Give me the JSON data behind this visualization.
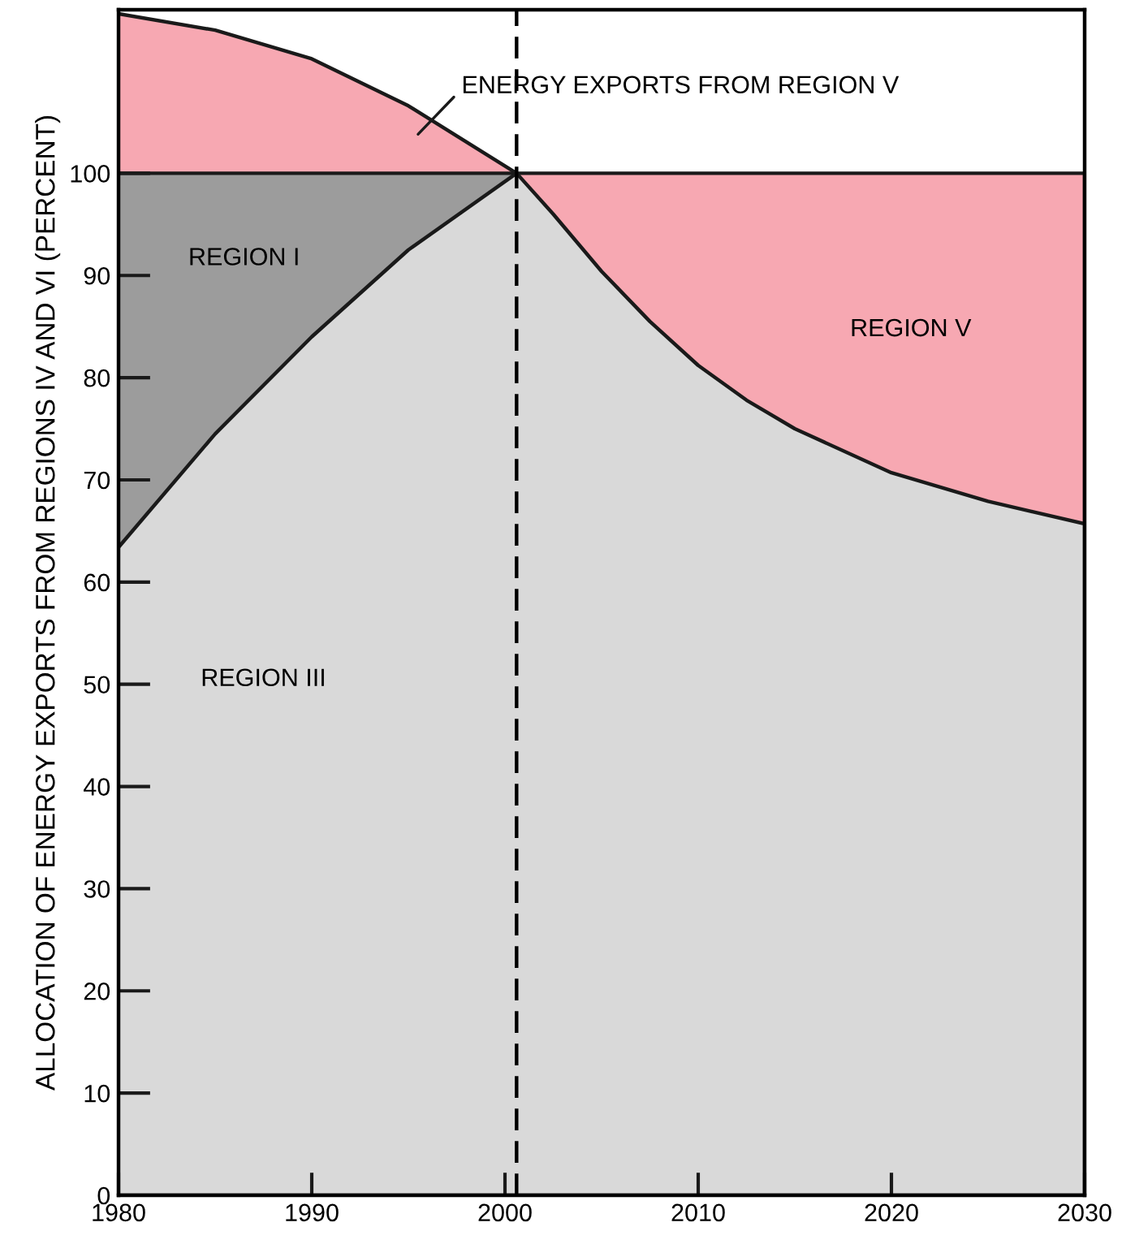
{
  "chart_data": {
    "type": "area",
    "ylabel": "ALLOCATION OF ENERGY EXPORTS FROM REGIONS IV AND VI (PERCENT)",
    "series": [
      {
        "color": "#f7a8b2",
        "x": [
          1980,
          1985,
          1990,
          1995,
          2000.6
        ],
        "values": [
          115.6,
          114,
          111.2,
          106.6,
          100
        ]
      },
      {
        "color": "#9c9c9c",
        "x": [
          1980,
          2000.6
        ],
        "values": [
          100,
          100
        ]
      },
      {
        "color": "#f7a8b2",
        "x": [
          2000.6,
          2030
        ],
        "values": [
          100,
          100
        ]
      },
      {
        "color": "#d9d9d9",
        "x": [
          1980,
          1985,
          1990,
          1995,
          2000.6,
          2002.5,
          2005,
          2007.5,
          2010,
          2012.5,
          2015,
          2020,
          2025,
          2030
        ],
        "values": [
          63.4,
          74.5,
          84,
          92.5,
          100,
          96,
          90.4,
          85.5,
          81.2,
          77.8,
          75,
          70.7,
          67.9,
          65.7
        ]
      }
    ],
    "xlim": [
      1980,
      2030
    ],
    "ylim": [
      0,
      116
    ],
    "xticks": [
      1980,
      1990,
      2000,
      2010,
      2020,
      2030
    ],
    "yticks": [
      0,
      10,
      20,
      30,
      40,
      50,
      60,
      70,
      80,
      90,
      100
    ],
    "ref_lines": [
      {
        "axis": "x",
        "value": 2000.6,
        "line_style": "dashed",
        "color": "#000000"
      }
    ],
    "annotations": [
      "REGION I",
      "REGION V",
      "REGION III",
      "ENERGY EXPORTS FROM REGION V"
    ]
  }
}
